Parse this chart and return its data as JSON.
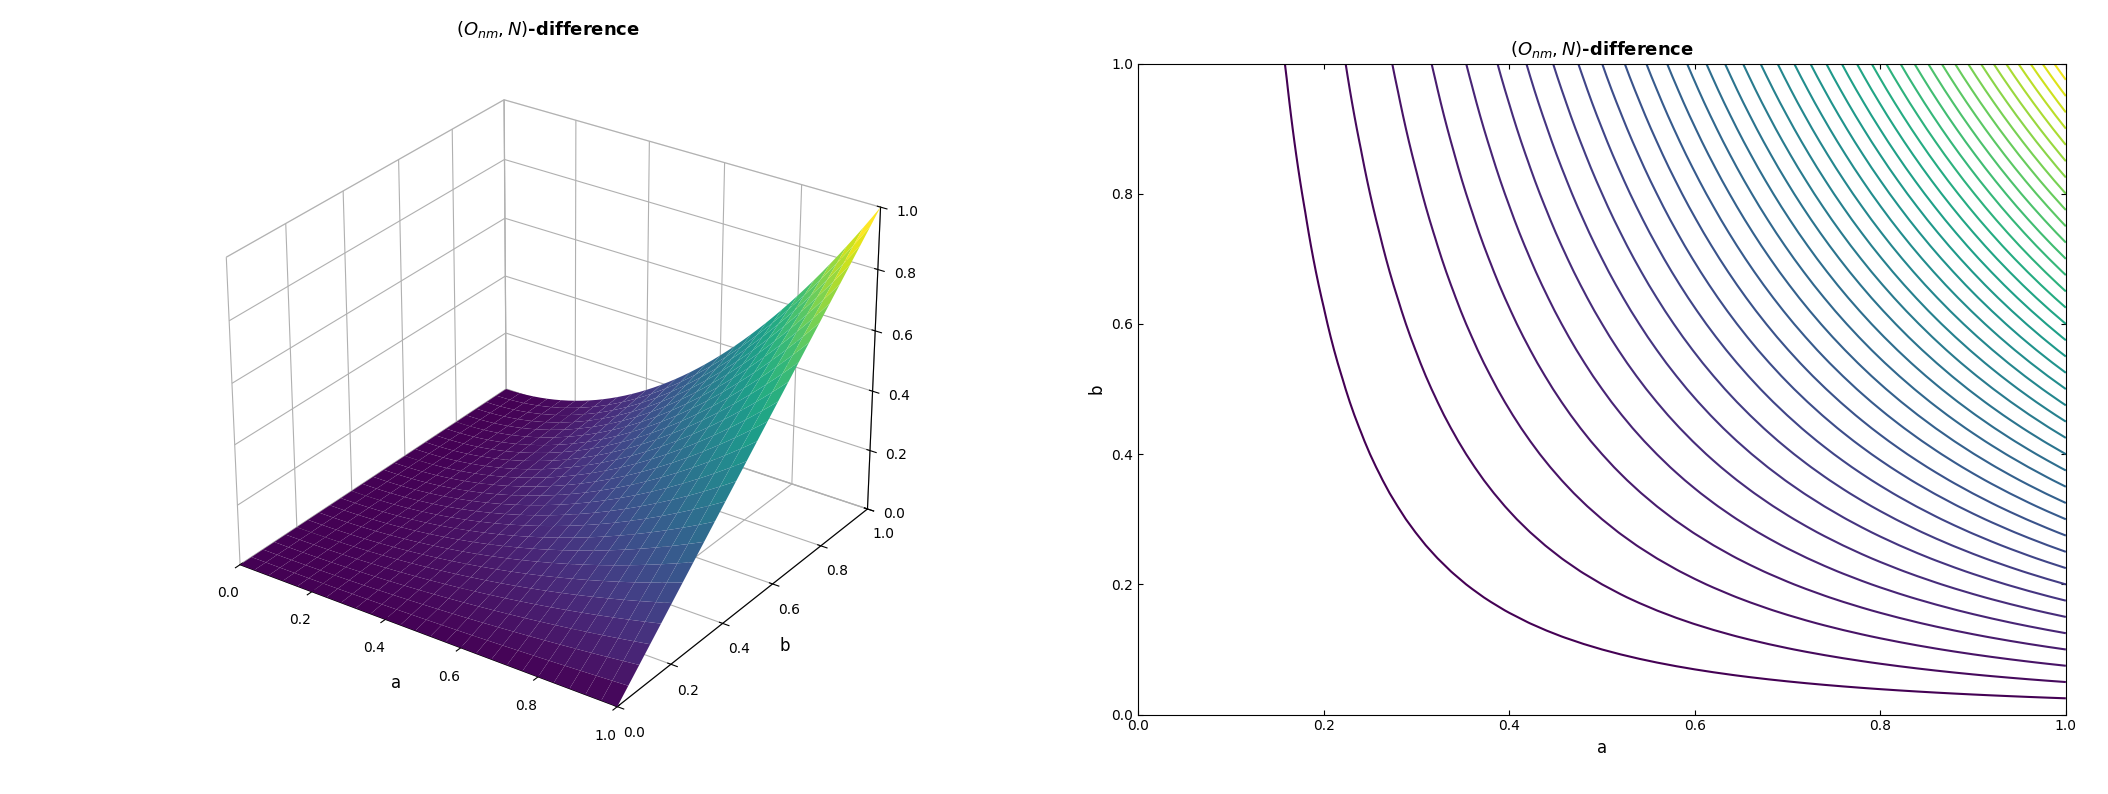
{
  "xlabel_3d": "a",
  "ylabel_3d": "b",
  "xlabel_contour": "a",
  "ylabel_contour": "b",
  "n_grid": 51,
  "cmap": "viridis",
  "n_contour_levels": 40,
  "background_color": "#ffffff",
  "elev": 30,
  "azim": -60,
  "title_fontsize": 13,
  "tick_fontsize": 10,
  "label_fontsize": 12
}
